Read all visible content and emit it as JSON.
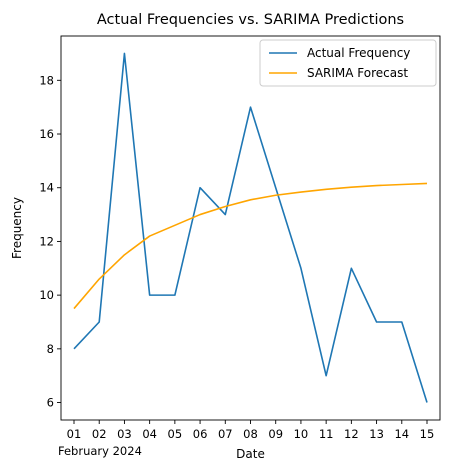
{
  "chart_data": {
    "type": "line",
    "title": "Actual Frequencies vs. SARIMA Predictions",
    "xlabel": "Date",
    "ylabel": "Frequency",
    "x_offset_label": "February 2024",
    "categories": [
      "01",
      "02",
      "03",
      "04",
      "05",
      "06",
      "07",
      "08",
      "09",
      "10",
      "11",
      "12",
      "13",
      "14",
      "15"
    ],
    "yticks": [
      6,
      8,
      10,
      12,
      14,
      16,
      18
    ],
    "ylim": [
      5.35,
      19.65
    ],
    "grid": false,
    "legend_position": "top-right",
    "series": [
      {
        "name": "Actual Frequency",
        "color": "#1f77b4",
        "values": [
          8,
          9,
          19,
          10,
          10,
          14,
          13,
          17,
          14,
          11,
          7,
          11,
          9,
          9,
          6
        ]
      },
      {
        "name": "SARIMA Forecast",
        "color": "#ffa500",
        "values": [
          9.5,
          10.6,
          11.5,
          12.2,
          12.6,
          13.0,
          13.3,
          13.55,
          13.72,
          13.84,
          13.94,
          14.02,
          14.08,
          14.12,
          14.16
        ]
      }
    ]
  }
}
